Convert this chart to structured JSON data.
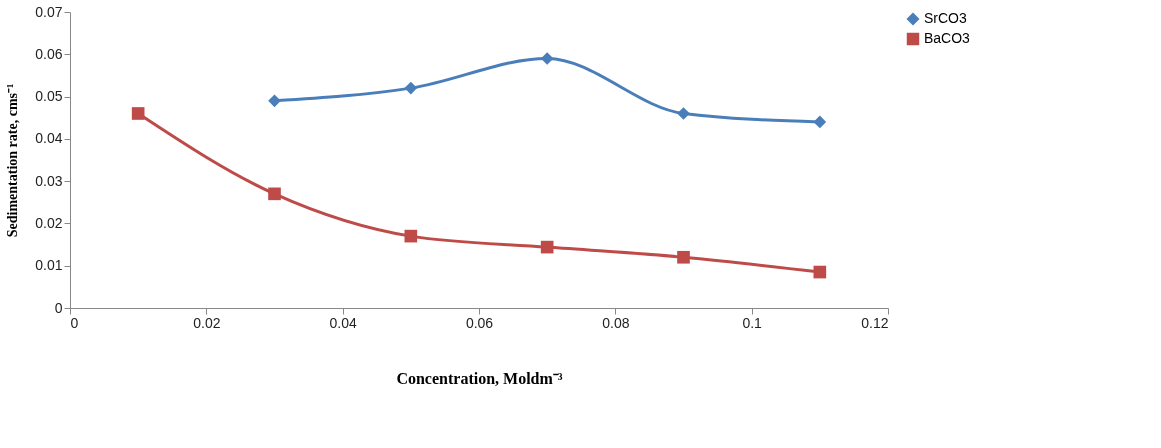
{
  "chart_data": {
    "type": "line",
    "xlabel": "Concentration, Moldm⁻³",
    "ylabel": "Sedimentation rate, cms⁻¹",
    "xlim": [
      0,
      0.12
    ],
    "xticks": [
      0,
      0.02,
      0.04,
      0.06,
      0.08,
      0.1,
      0.12
    ],
    "ylim": [
      0,
      0.07
    ],
    "yticks": [
      0,
      0.01,
      0.02,
      0.03,
      0.04,
      0.05,
      0.06,
      0.07
    ],
    "grid": false,
    "legend": "right",
    "line_style": "solid",
    "series": [
      {
        "name": "SrCO3",
        "color": "#4a7ebb",
        "marker": "diamond",
        "x": [
          0.03,
          0.05,
          0.07,
          0.09,
          0.11
        ],
        "values": [
          0.049,
          0.052,
          0.059,
          0.046,
          0.044
        ]
      },
      {
        "name": "BaCO3",
        "color": "#be4b48",
        "marker": "square",
        "x": [
          0.01,
          0.03,
          0.05,
          0.07,
          0.09,
          0.11
        ],
        "values": [
          0.046,
          0.027,
          0.017,
          0.0144,
          0.012,
          0.0085
        ]
      }
    ]
  }
}
